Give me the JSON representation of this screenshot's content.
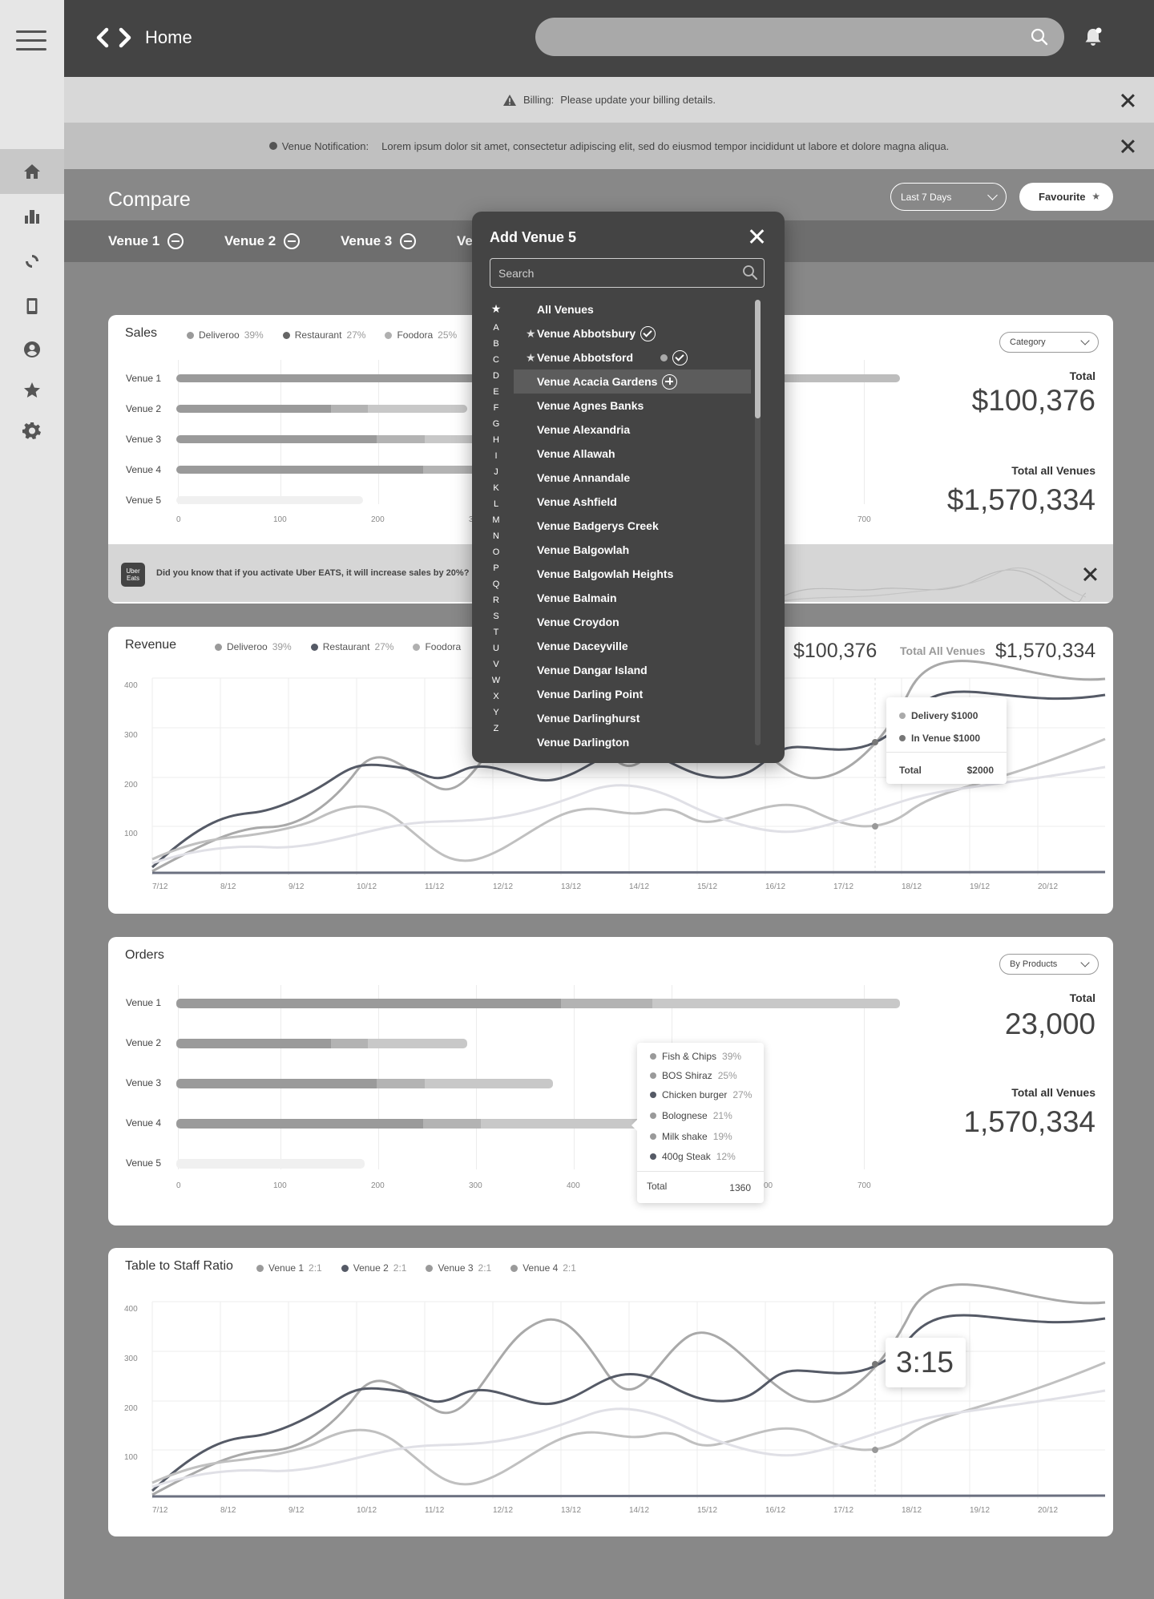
{
  "topbar": {
    "title": "Home",
    "search_placeholder": ""
  },
  "billing": {
    "label": "Billing:",
    "message": "Please update your billing details."
  },
  "venue_notice": {
    "label": "Venue Notification:",
    "message": "Lorem ipsum dolor sit amet, consectetur adipiscing elit, sed do eiusmod tempor incididunt ut labore et dolore magna aliqua."
  },
  "compare": {
    "title": "Compare",
    "range": "Last 7 Days",
    "favourite": "Favourite"
  },
  "venue_tabs": [
    "Venue 1",
    "Venue 2",
    "Venue 3",
    "Ve"
  ],
  "icons": {
    "sidebar": [
      "home-icon",
      "buildings-icon",
      "refresh-icon",
      "mobile-icon",
      "user-icon",
      "star-icon",
      "gear-icon"
    ]
  },
  "sales": {
    "title": "Sales",
    "legend": [
      {
        "name": "Deliveroo",
        "pct": "39%",
        "color": "#9a9a9a"
      },
      {
        "name": "Restaurant",
        "pct": "27%",
        "color": "#666666"
      },
      {
        "name": "Foodora",
        "pct": "25%",
        "color": "#b0b0b0"
      }
    ],
    "select": "Category",
    "total_label": "Total",
    "total_value": "$100,376",
    "all_label": "Total all Venues",
    "all_value": "$1,570,334",
    "rows": [
      "Venue 1",
      "Venue 2",
      "Venue 3",
      "Venue 4",
      "Venue 5"
    ],
    "axis": [
      "0",
      "100",
      "200",
      "3",
      "700"
    ],
    "promo": "Did you know that if you activate Uber EATS, it will increase sales by 20%?",
    "promo_logo": "Uber Eats"
  },
  "revenue": {
    "title": "Revenue",
    "legend": [
      {
        "name": "Deliveroo",
        "pct": "39%",
        "color": "#9a9a9a"
      },
      {
        "name": "Restaurant",
        "pct": "27%",
        "color": "#555a66"
      },
      {
        "name": "Foodora",
        "pct": "",
        "color": "#b0b0b0"
      }
    ],
    "total_value": "$100,376",
    "all_label": "Total All Venues",
    "all_value": "$1,570,334",
    "yaxis": [
      "400",
      "300",
      "200",
      "100"
    ],
    "xaxis": [
      "7/12",
      "8/12",
      "9/12",
      "10/12",
      "11/12",
      "12/12",
      "13/12",
      "14/12",
      "15/12",
      "16/12",
      "17/12",
      "18/12",
      "19/12",
      "20/12"
    ],
    "tooltip": {
      "delivery": "Delivery $1000",
      "in_venue": "In Venue $1000",
      "total_label": "Total",
      "total_value": "$2000"
    }
  },
  "orders": {
    "title": "Orders",
    "select": "By Products",
    "total_label": "Total",
    "total_value": "23,000",
    "all_label": "Total all Venues",
    "all_value": "1,570,334",
    "rows": [
      "Venue 1",
      "Venue 2",
      "Venue 3",
      "Venue 4",
      "Venue 5"
    ],
    "axis": [
      "0",
      "100",
      "200",
      "300",
      "400",
      "00",
      "700"
    ],
    "tooltip": {
      "items": [
        {
          "name": "Fish & Chips",
          "pct": "39%",
          "color": "#9a9a9a"
        },
        {
          "name": "BOS Shiraz",
          "pct": "25%",
          "color": "#9a9a9a"
        },
        {
          "name": "Chicken burger",
          "pct": "27%",
          "color": "#555a66"
        },
        {
          "name": "Bolognese",
          "pct": "21%",
          "color": "#9a9a9a"
        },
        {
          "name": "Milk shake",
          "pct": "19%",
          "color": "#9a9a9a"
        },
        {
          "name": "400g Steak",
          "pct": "12%",
          "color": "#555a66"
        }
      ],
      "total_label": "Total",
      "total_value": "1360"
    }
  },
  "ratio": {
    "title": "Table to Staff Ratio",
    "legend": [
      {
        "name": "Venue 1",
        "pct": "2:1",
        "color": "#9a9a9a"
      },
      {
        "name": "Venue 2",
        "pct": "2:1",
        "color": "#555a66"
      },
      {
        "name": "Venue 3",
        "pct": "2:1",
        "color": "#9a9a9a"
      },
      {
        "name": "Venue 4",
        "pct": "2:1",
        "color": "#9a9a9a"
      }
    ],
    "yaxis": [
      "400",
      "300",
      "200",
      "100"
    ],
    "xaxis": [
      "7/12",
      "8/12",
      "9/12",
      "10/12",
      "11/12",
      "12/12",
      "13/12",
      "14/12",
      "15/12",
      "16/12",
      "17/12",
      "18/12",
      "19/12",
      "20/12"
    ],
    "tooltip": "3:15"
  },
  "modal": {
    "title": "Add Venue 5",
    "search_placeholder": "Search",
    "alphabet": [
      "A",
      "B",
      "C",
      "D",
      "E",
      "F",
      "G",
      "H",
      "I",
      "J",
      "K",
      "L",
      "M",
      "N",
      "O",
      "P",
      "Q",
      "R",
      "S",
      "T",
      "U",
      "V",
      "W",
      "X",
      "Y",
      "Z"
    ],
    "venues": [
      {
        "name": "All Venues",
        "fav": false,
        "state": ""
      },
      {
        "name": "Venue Abbotsbury",
        "fav": true,
        "state": "checked"
      },
      {
        "name": "Venue Abbotsford",
        "fav": true,
        "state": "checked-dot"
      },
      {
        "name": "Venue Acacia Gardens",
        "fav": false,
        "state": "add"
      },
      {
        "name": "Venue Agnes Banks",
        "fav": false,
        "state": ""
      },
      {
        "name": "Venue Alexandria",
        "fav": false,
        "state": ""
      },
      {
        "name": "Venue Allawah",
        "fav": false,
        "state": ""
      },
      {
        "name": "Venue Annandale",
        "fav": false,
        "state": ""
      },
      {
        "name": "Venue Ashfield",
        "fav": false,
        "state": ""
      },
      {
        "name": "Venue Badgerys Creek",
        "fav": false,
        "state": ""
      },
      {
        "name": "Venue Balgowlah",
        "fav": false,
        "state": ""
      },
      {
        "name": "Venue Balgowlah Heights",
        "fav": false,
        "state": ""
      },
      {
        "name": "Venue Balmain",
        "fav": false,
        "state": ""
      },
      {
        "name": "Venue Croydon",
        "fav": false,
        "state": ""
      },
      {
        "name": "Venue Daceyville",
        "fav": false,
        "state": ""
      },
      {
        "name": "Venue Dangar Island",
        "fav": false,
        "state": ""
      },
      {
        "name": "Venue Darling Point",
        "fav": false,
        "state": ""
      },
      {
        "name": "Venue Darlinghurst",
        "fav": false,
        "state": ""
      },
      {
        "name": "Venue Darlington",
        "fav": false,
        "state": ""
      }
    ]
  }
}
